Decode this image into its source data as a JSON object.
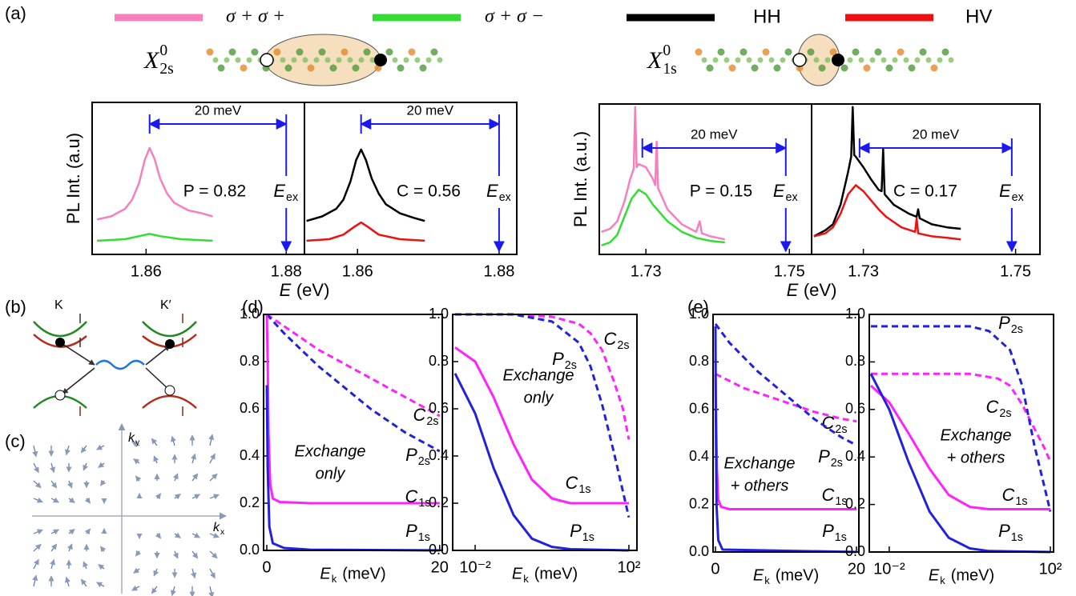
{
  "panel_labels": {
    "a": "(a)",
    "b": "(b)",
    "c": "(c)",
    "d": "(d)",
    "e": "(e)"
  },
  "states": [
    {
      "symbol": "X",
      "sup": "0",
      "sub": "2s"
    },
    {
      "symbol": "X",
      "sup": "0",
      "sub": "1s"
    }
  ],
  "diagrams": {
    "valleys": [
      "K",
      "K′"
    ],
    "ky": {
      "symbol": "k",
      "sub": "y"
    },
    "kx": {
      "symbol": "k",
      "sub": "x"
    }
  },
  "chart_data": [
    {
      "type": "line",
      "ylabel": "PL Int. (a.u)",
      "xlabel": {
        "symbol": "E",
        "unit": "(eV)"
      },
      "xlim": [
        1.8523,
        1.8826
      ],
      "ylim": [
        0,
        1
      ],
      "xticks": [
        1.86,
        1.88
      ],
      "annotation": "P = 0.82",
      "span": {
        "label": "20 meV",
        "x": [
          1.8605,
          1.88
        ]
      },
      "excitation": {
        "symbol": "E",
        "sub": "ex",
        "x": 1.88
      },
      "series": [
        {
          "name": "σ + σ +",
          "color": "#f77fbe",
          "x": [
            1.853,
            1.855,
            1.857,
            1.858,
            1.859,
            1.8598,
            1.8605,
            1.8612,
            1.862,
            1.863,
            1.864,
            1.866,
            1.868,
            1.8695
          ],
          "values": [
            0.23,
            0.25,
            0.3,
            0.36,
            0.47,
            0.62,
            0.7,
            0.63,
            0.5,
            0.4,
            0.34,
            0.29,
            0.27,
            0.25
          ]
        },
        {
          "name": "σ + σ −",
          "color": "#33dd33",
          "x": [
            1.853,
            1.857,
            1.859,
            1.8605,
            1.862,
            1.865,
            1.8695
          ],
          "values": [
            0.09,
            0.1,
            0.12,
            0.135,
            0.12,
            0.1,
            0.09
          ]
        }
      ]
    },
    {
      "type": "line",
      "xlim": [
        1.8525,
        1.8825
      ],
      "ylim": [
        0,
        1
      ],
      "xticks": [
        1.86,
        1.88
      ],
      "annotation": "C = 0.56",
      "span": {
        "label": "20 meV",
        "x": [
          1.8605,
          1.88
        ]
      },
      "excitation": {
        "symbol": "E",
        "sub": "ex",
        "x": 1.88
      },
      "series": [
        {
          "name": "HH",
          "color": "#000000",
          "x": [
            1.8528,
            1.855,
            1.857,
            1.858,
            1.859,
            1.8598,
            1.8605,
            1.8612,
            1.862,
            1.863,
            1.864,
            1.866,
            1.868,
            1.8695
          ],
          "values": [
            0.22,
            0.25,
            0.3,
            0.36,
            0.48,
            0.62,
            0.69,
            0.62,
            0.5,
            0.4,
            0.33,
            0.27,
            0.24,
            0.22
          ]
        },
        {
          "name": "HV",
          "color": "#ee1111",
          "x": [
            1.8528,
            1.856,
            1.858,
            1.8595,
            1.8605,
            1.8615,
            1.863,
            1.866,
            1.8695
          ],
          "values": [
            0.09,
            0.1,
            0.13,
            0.18,
            0.21,
            0.18,
            0.13,
            0.1,
            0.09
          ]
        }
      ]
    },
    {
      "type": "line",
      "ylabel": "PL Int. (a.u.)",
      "xlabel": {
        "symbol": "E",
        "unit": "(eV)"
      },
      "xlim": [
        1.7235,
        1.7531
      ],
      "ylim": [
        0,
        1
      ],
      "xticks": [
        1.73,
        1.75
      ],
      "annotation": "P = 0.15",
      "span": {
        "label": "20 meV",
        "x": [
          1.7295,
          1.7495
        ]
      },
      "excitation": {
        "symbol": "E",
        "sub": "ex",
        "x": 1.7495
      },
      "series": [
        {
          "color": "#f77fbe",
          "x": [
            1.7238,
            1.725,
            1.726,
            1.727,
            1.7278,
            1.7283,
            1.7285,
            1.7287,
            1.729,
            1.73,
            1.731,
            1.7313,
            1.7315,
            1.7317,
            1.733,
            1.735,
            1.737,
            1.7375,
            1.7378,
            1.739,
            1.741
          ],
          "values": [
            0.15,
            0.17,
            0.22,
            0.35,
            0.5,
            0.57,
            0.98,
            0.58,
            0.6,
            0.58,
            0.5,
            0.46,
            0.75,
            0.44,
            0.3,
            0.2,
            0.15,
            0.22,
            0.14,
            0.12,
            0.1
          ]
        },
        {
          "color": "#33dd33",
          "x": [
            1.7238,
            1.725,
            1.726,
            1.727,
            1.728,
            1.729,
            1.73,
            1.731,
            1.733,
            1.735,
            1.737,
            1.739,
            1.741
          ],
          "values": [
            0.06,
            0.08,
            0.13,
            0.25,
            0.37,
            0.43,
            0.4,
            0.33,
            0.22,
            0.15,
            0.11,
            0.09,
            0.08
          ]
        }
      ]
    },
    {
      "type": "line",
      "xlim": [
        1.7232,
        1.7532
      ],
      "ylim": [
        0,
        1
      ],
      "xticks": [
        1.73,
        1.75
      ],
      "annotation": "C = 0.17",
      "span": {
        "label": "20 meV",
        "x": [
          1.7295,
          1.7495
        ]
      },
      "excitation": {
        "symbol": "E",
        "sub": "ex",
        "x": 1.7495
      },
      "series": [
        {
          "color": "#000000",
          "x": [
            1.7235,
            1.725,
            1.726,
            1.727,
            1.728,
            1.7284,
            1.7286,
            1.7288,
            1.729,
            1.73,
            1.731,
            1.732,
            1.7324,
            1.7326,
            1.7328,
            1.734,
            1.736,
            1.737,
            1.7372,
            1.7374,
            1.739,
            1.741,
            1.7428
          ],
          "values": [
            0.12,
            0.16,
            0.2,
            0.33,
            0.55,
            0.65,
            0.98,
            0.66,
            0.65,
            0.58,
            0.5,
            0.43,
            0.42,
            0.7,
            0.4,
            0.33,
            0.27,
            0.25,
            0.3,
            0.24,
            0.2,
            0.18,
            0.17
          ]
        },
        {
          "color": "#ee1111",
          "x": [
            1.7235,
            1.725,
            1.726,
            1.727,
            1.728,
            1.729,
            1.73,
            1.731,
            1.732,
            1.733,
            1.735,
            1.7368,
            1.737,
            1.7372,
            1.739,
            1.741,
            1.7428
          ],
          "values": [
            0.12,
            0.14,
            0.18,
            0.27,
            0.4,
            0.46,
            0.42,
            0.36,
            0.3,
            0.25,
            0.18,
            0.15,
            0.24,
            0.14,
            0.12,
            0.11,
            0.1
          ]
        }
      ]
    },
    {
      "type": "line",
      "xscale": "linear",
      "xlim": [
        -0.37,
        20.3
      ],
      "ylim": [
        0,
        1
      ],
      "xticks": [
        0,
        20
      ],
      "yticks": [
        {
          "value": 0,
          "label": "0.0"
        },
        0.2,
        0.4,
        0.6,
        0.8,
        {
          "value": 1,
          "label": "1.0"
        }
      ],
      "xlabel": {
        "symbol": "E",
        "sub": "k",
        "unit": "(meV)"
      },
      "note": [
        "Exchange",
        "only"
      ],
      "series": [
        {
          "name": "C",
          "sub": "2s",
          "color": "#ff22ff",
          "dash": true,
          "x": [
            0,
            2,
            4,
            6,
            8,
            10,
            12,
            14,
            16,
            18,
            20
          ],
          "values": [
            1,
            0.95,
            0.9,
            0.85,
            0.81,
            0.77,
            0.73,
            0.69,
            0.65,
            0.61,
            0.57
          ]
        },
        {
          "name": "P",
          "sub": "2s",
          "color": "#2222dd",
          "dash": true,
          "x": [
            0,
            2,
            4,
            6,
            8,
            10,
            12,
            14,
            16,
            18,
            20
          ],
          "values": [
            1,
            0.92,
            0.85,
            0.78,
            0.72,
            0.66,
            0.6,
            0.55,
            0.5,
            0.46,
            0.42
          ]
        },
        {
          "name": "C",
          "sub": "1s",
          "color": "#ff22ff",
          "x": [
            0,
            0.1,
            0.2,
            0.4,
            0.7,
            1.5,
            5,
            20
          ],
          "values": [
            1,
            0.8,
            0.5,
            0.28,
            0.22,
            0.205,
            0.2,
            0.2
          ]
        },
        {
          "name": "P",
          "sub": "1s",
          "color": "#2222dd",
          "x": [
            0,
            0.1,
            0.3,
            0.7,
            2,
            5,
            20
          ],
          "values": [
            0.7,
            0.35,
            0.1,
            0.03,
            0.01,
            0.003,
            0
          ]
        }
      ]
    },
    {
      "type": "line",
      "xscale": "log",
      "xlim": [
        0.0026,
        162
      ],
      "ylim": [
        0,
        1
      ],
      "xticks": [
        {
          "value": 0.01,
          "label": "10⁻²"
        },
        {
          "value": 100,
          "label": "10²"
        }
      ],
      "yticks": [
        {
          "value": 0,
          "label": "0.0"
        },
        0.2,
        0.4,
        0.6,
        0.8,
        {
          "value": 1,
          "label": "1.0"
        }
      ],
      "xlabel": {
        "symbol": "E",
        "sub": "k",
        "unit": "(meV)"
      },
      "note": [
        "Exchange",
        "only"
      ],
      "series": [
        {
          "name": "C",
          "sub": "2s",
          "color": "#ff22ff",
          "dash": true,
          "x": [
            0.003,
            0.01,
            0.1,
            1,
            5,
            10,
            20,
            40,
            70,
            100
          ],
          "values": [
            1,
            1,
            1,
            0.99,
            0.96,
            0.92,
            0.85,
            0.72,
            0.6,
            0.47
          ]
        },
        {
          "name": "P",
          "sub": "2s",
          "color": "#2222dd",
          "dash": true,
          "x": [
            0.003,
            0.1,
            1,
            5,
            10,
            20,
            40,
            70,
            100
          ],
          "values": [
            1,
            1,
            0.97,
            0.88,
            0.78,
            0.62,
            0.42,
            0.25,
            0.14
          ]
        },
        {
          "name": "C",
          "sub": "1s",
          "color": "#ff22ff",
          "x": [
            0.003,
            0.01,
            0.03,
            0.1,
            0.3,
            1,
            3,
            100
          ],
          "values": [
            0.86,
            0.8,
            0.65,
            0.45,
            0.3,
            0.22,
            0.2,
            0.2
          ]
        },
        {
          "name": "P",
          "sub": "1s",
          "color": "#2222dd",
          "x": [
            0.003,
            0.01,
            0.03,
            0.1,
            0.3,
            1,
            3,
            100
          ],
          "values": [
            0.75,
            0.58,
            0.35,
            0.15,
            0.05,
            0.015,
            0.005,
            0
          ]
        }
      ]
    },
    {
      "type": "line",
      "xscale": "linear",
      "xlim": [
        -0.34,
        20.34
      ],
      "ylim": [
        0,
        1
      ],
      "xticks": [
        0,
        20
      ],
      "yticks": [
        {
          "value": 0,
          "label": "0.0"
        },
        0.2,
        0.4,
        0.6,
        0.8,
        {
          "value": 1,
          "label": "1.0"
        }
      ],
      "xlabel": {
        "symbol": "E",
        "sub": "k",
        "unit": "(meV)"
      },
      "note": [
        "Exchange",
        "+ others"
      ],
      "series": [
        {
          "name": "C",
          "sub": "2s",
          "color": "#ff22ff",
          "dash": true,
          "x": [
            0,
            2,
            4,
            6,
            8,
            10,
            12,
            14,
            16,
            18,
            20
          ],
          "values": [
            0.75,
            0.72,
            0.69,
            0.67,
            0.65,
            0.63,
            0.61,
            0.59,
            0.575,
            0.56,
            0.55
          ]
        },
        {
          "name": "P",
          "sub": "2s",
          "color": "#2222dd",
          "dash": true,
          "x": [
            0,
            2,
            4,
            6,
            8,
            10,
            12,
            14,
            16,
            18,
            20
          ],
          "values": [
            0.96,
            0.88,
            0.82,
            0.76,
            0.71,
            0.66,
            0.61,
            0.56,
            0.52,
            0.48,
            0.45
          ]
        },
        {
          "name": "C",
          "sub": "1s",
          "color": "#ff22ff",
          "x": [
            0,
            0.1,
            0.2,
            0.4,
            0.8,
            2,
            20
          ],
          "values": [
            0.75,
            0.55,
            0.35,
            0.22,
            0.19,
            0.18,
            0.18
          ]
        },
        {
          "name": "P",
          "sub": "1s",
          "color": "#2222dd",
          "x": [
            0,
            0.05,
            0.15,
            0.4,
            1,
            20
          ],
          "values": [
            0.95,
            0.6,
            0.2,
            0.05,
            0.01,
            0
          ]
        }
      ]
    },
    {
      "type": "line",
      "xscale": "log",
      "xlim": [
        0.0032,
        120
      ],
      "ylim": [
        0,
        1
      ],
      "xticks": [
        {
          "value": 0.01,
          "label": "10⁻²"
        },
        {
          "value": 100,
          "label": "10²"
        }
      ],
      "yticks": [
        {
          "value": 0,
          "label": "0.0"
        },
        0.2,
        0.4,
        0.6,
        0.8,
        {
          "value": 1,
          "label": "1.0"
        }
      ],
      "xlabel": {
        "symbol": "E",
        "sub": "k",
        "unit": "(meV)"
      },
      "note": [
        "Exchange",
        "+ others"
      ],
      "series": [
        {
          "name": "C",
          "sub": "2s",
          "color": "#ff22ff",
          "dash": true,
          "x": [
            0.0035,
            1,
            5,
            10,
            20,
            40,
            70,
            100
          ],
          "values": [
            0.75,
            0.75,
            0.73,
            0.7,
            0.62,
            0.52,
            0.44,
            0.38
          ]
        },
        {
          "name": "P",
          "sub": "2s",
          "color": "#2222dd",
          "dash": true,
          "x": [
            0.0035,
            1,
            3,
            10,
            20,
            40,
            70,
            100
          ],
          "values": [
            0.95,
            0.95,
            0.93,
            0.85,
            0.7,
            0.45,
            0.28,
            0.17
          ]
        },
        {
          "name": "C",
          "sub": "1s",
          "color": "#ff22ff",
          "x": [
            0.0035,
            0.01,
            0.03,
            0.1,
            0.3,
            1,
            3,
            100
          ],
          "values": [
            0.7,
            0.63,
            0.5,
            0.35,
            0.24,
            0.19,
            0.18,
            0.18
          ]
        },
        {
          "name": "P",
          "sub": "1s",
          "color": "#2222dd",
          "x": [
            0.0035,
            0.01,
            0.03,
            0.1,
            0.3,
            1,
            3,
            100
          ],
          "values": [
            0.75,
            0.6,
            0.38,
            0.17,
            0.06,
            0.015,
            0.004,
            0
          ]
        }
      ]
    }
  ]
}
